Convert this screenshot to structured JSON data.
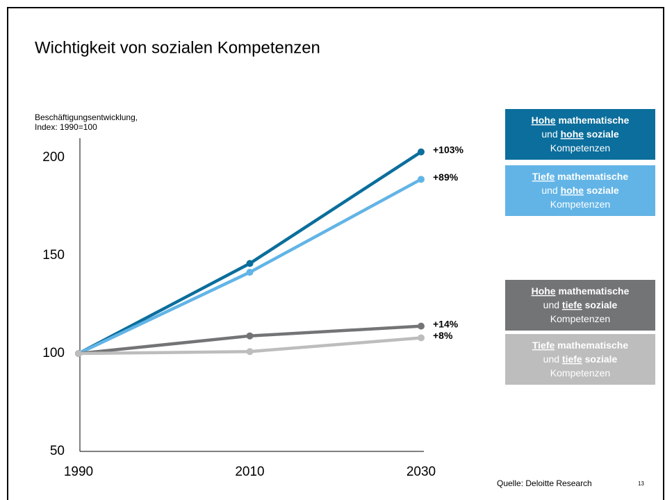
{
  "chart_data": {
    "type": "line",
    "title": "Wichtigkeit von sozialen Kompetenzen",
    "y_axis_label": [
      "Beschäftigungsentwicklung,",
      "Index: 1990=100"
    ],
    "x": [
      1990,
      2010,
      2030
    ],
    "xlim": [
      1990,
      2030
    ],
    "xticks": [
      1990,
      2010,
      2030
    ],
    "ylim": [
      50,
      210
    ],
    "yticks": [
      50,
      100,
      150,
      200
    ],
    "grid": false,
    "series": [
      {
        "name": [
          [
            {
              "text": "Hohe",
              "bold": true,
              "underline": true
            },
            {
              "text": " mathematische",
              "bold": true
            }
          ],
          [
            {
              "text": "und "
            },
            {
              "text": "hohe",
              "bold": true,
              "underline": true
            },
            {
              "text": " soziale",
              "bold": true
            }
          ],
          [
            {
              "text": "Kompetenzen"
            }
          ]
        ],
        "color": "#0b6e9c",
        "values": [
          100,
          146,
          203
        ],
        "end_label": "+103%"
      },
      {
        "name": [
          [
            {
              "text": "Tiefe",
              "bold": true,
              "underline": true
            },
            {
              "text": " mathematische",
              "bold": true
            }
          ],
          [
            {
              "text": "und "
            },
            {
              "text": "hohe",
              "bold": true,
              "underline": true
            },
            {
              "text": " soziale",
              "bold": true
            }
          ],
          [
            {
              "text": "Kompetenzen"
            }
          ]
        ],
        "color": "#62b4e6",
        "values": [
          100,
          141.5,
          189
        ],
        "end_label": "+89%"
      },
      {
        "name": [
          [
            {
              "text": "Hohe",
              "bold": true,
              "underline": true
            },
            {
              "text": " mathematische",
              "bold": true
            }
          ],
          [
            {
              "text": "und "
            },
            {
              "text": "tiefe",
              "bold": true,
              "underline": true
            },
            {
              "text": " soziale",
              "bold": true
            }
          ],
          [
            {
              "text": "Kompetenzen"
            }
          ]
        ],
        "color": "#737476",
        "values": [
          100,
          109,
          114
        ],
        "end_label": "+14%"
      },
      {
        "name": [
          [
            {
              "text": "Tiefe",
              "bold": true,
              "underline": true
            },
            {
              "text": " mathematische",
              "bold": true
            }
          ],
          [
            {
              "text": "und "
            },
            {
              "text": "tiefe",
              "bold": true,
              "underline": true
            },
            {
              "text": " soziale",
              "bold": true
            }
          ],
          [
            {
              "text": "Kompetenzen"
            }
          ]
        ],
        "color": "#bdbdbd",
        "values": [
          100,
          101,
          108
        ],
        "end_label": "+8%"
      }
    ],
    "source": "Quelle: Deloitte Research",
    "page_number": "13"
  }
}
